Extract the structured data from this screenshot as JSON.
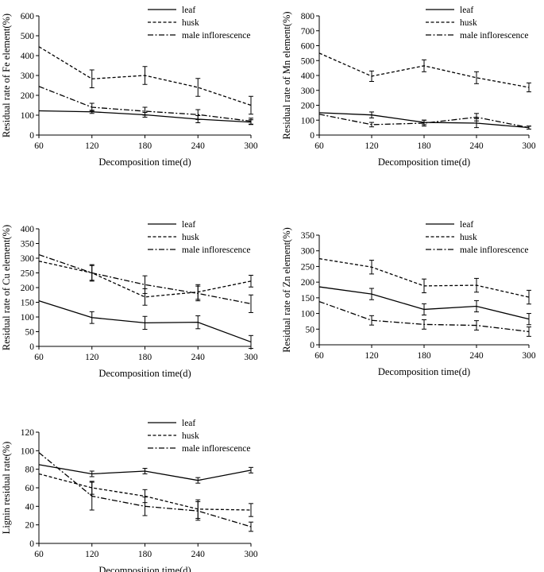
{
  "chart_data": [
    {
      "type": "line",
      "title": "",
      "xlabel": "Decomposition time(d)",
      "ylabel": "Residual rate of Fe element(%)",
      "x": [
        60,
        120,
        180,
        240,
        300
      ],
      "ylim": [
        0,
        600
      ],
      "yticks": [
        0,
        100,
        200,
        300,
        400,
        500,
        600
      ],
      "legend_position": "top-right",
      "series": [
        {
          "name": "leaf",
          "style": "solid",
          "values": [
            122,
            117,
            102,
            80,
            65
          ],
          "errors": [
            0,
            8,
            12,
            18,
            12
          ]
        },
        {
          "name": "husk",
          "style": "dashed",
          "values": [
            445,
            283,
            300,
            240,
            150
          ],
          "errors": [
            0,
            45,
            45,
            45,
            45
          ]
        },
        {
          "name": "male inflorescence",
          "style": "dashdot",
          "values": [
            245,
            140,
            120,
            103,
            70
          ],
          "errors": [
            0,
            20,
            20,
            25,
            15
          ]
        }
      ]
    },
    {
      "type": "line",
      "title": "",
      "xlabel": "Decomposition time(d)",
      "ylabel": "Residual rate of Mn element(%)",
      "x": [
        60,
        120,
        180,
        240,
        300
      ],
      "ylim": [
        0,
        800
      ],
      "yticks": [
        0,
        100,
        200,
        300,
        400,
        500,
        600,
        700,
        800
      ],
      "legend_position": "top-right",
      "series": [
        {
          "name": "leaf",
          "style": "solid",
          "values": [
            150,
            135,
            85,
            80,
            50
          ],
          "errors": [
            0,
            20,
            15,
            30,
            10
          ]
        },
        {
          "name": "husk",
          "style": "dashed",
          "values": [
            550,
            395,
            465,
            385,
            320
          ],
          "errors": [
            0,
            35,
            40,
            40,
            30
          ]
        },
        {
          "name": "male inflorescence",
          "style": "dashdot",
          "values": [
            140,
            70,
            80,
            120,
            50
          ],
          "errors": [
            0,
            15,
            20,
            25,
            10
          ]
        }
      ]
    },
    {
      "type": "line",
      "title": "",
      "xlabel": "Decomposition time(d)",
      "ylabel": "Residual rate of Cu element(%)",
      "x": [
        60,
        120,
        180,
        240,
        300
      ],
      "ylim": [
        0,
        400
      ],
      "yticks": [
        0,
        50,
        100,
        150,
        200,
        250,
        300,
        350,
        400
      ],
      "legend_position": "top-right",
      "series": [
        {
          "name": "leaf",
          "style": "solid",
          "values": [
            155,
            98,
            80,
            82,
            15
          ],
          "errors": [
            0,
            20,
            22,
            22,
            22
          ]
        },
        {
          "name": "husk",
          "style": "dashed",
          "values": [
            290,
            250,
            168,
            185,
            222
          ],
          "errors": [
            0,
            28,
            28,
            25,
            20
          ]
        },
        {
          "name": "male inflorescence",
          "style": "dashdot",
          "values": [
            312,
            250,
            210,
            180,
            145
          ],
          "errors": [
            0,
            25,
            30,
            25,
            30
          ]
        }
      ]
    },
    {
      "type": "line",
      "title": "",
      "xlabel": "Decomposition time(d)",
      "ylabel": "Residual rate of Zn element(%)",
      "x": [
        60,
        120,
        180,
        240,
        300
      ],
      "ylim": [
        0,
        350
      ],
      "yticks": [
        0,
        50,
        100,
        150,
        200,
        250,
        300,
        350
      ],
      "legend_position": "top-right",
      "series": [
        {
          "name": "leaf",
          "style": "solid",
          "values": [
            185,
            162,
            113,
            123,
            82
          ],
          "errors": [
            0,
            18,
            18,
            18,
            18
          ]
        },
        {
          "name": "husk",
          "style": "dashed",
          "values": [
            275,
            248,
            188,
            190,
            152
          ],
          "errors": [
            0,
            22,
            22,
            22,
            22
          ]
        },
        {
          "name": "male inflorescence",
          "style": "dashdot",
          "values": [
            138,
            78,
            65,
            62,
            42
          ],
          "errors": [
            0,
            15,
            15,
            15,
            15
          ]
        }
      ]
    },
    {
      "type": "line",
      "title": "",
      "xlabel": "Decomposition time(d)",
      "ylabel": "Lignin residual rate(%)",
      "x": [
        60,
        120,
        180,
        240,
        300
      ],
      "ylim": [
        0,
        120
      ],
      "yticks": [
        0,
        20,
        40,
        60,
        80,
        100,
        120
      ],
      "legend_position": "top-right",
      "series": [
        {
          "name": "leaf",
          "style": "solid",
          "values": [
            85,
            75,
            78,
            68,
            79
          ],
          "errors": [
            0,
            3,
            3,
            3,
            3
          ]
        },
        {
          "name": "husk",
          "style": "dashed",
          "values": [
            75,
            60,
            51,
            37,
            36
          ],
          "errors": [
            0,
            7,
            7,
            10,
            7
          ]
        },
        {
          "name": "male inflorescence",
          "style": "dashdot",
          "values": [
            98,
            51,
            40,
            35,
            18
          ],
          "errors": [
            0,
            15,
            10,
            10,
            5
          ]
        }
      ]
    }
  ]
}
